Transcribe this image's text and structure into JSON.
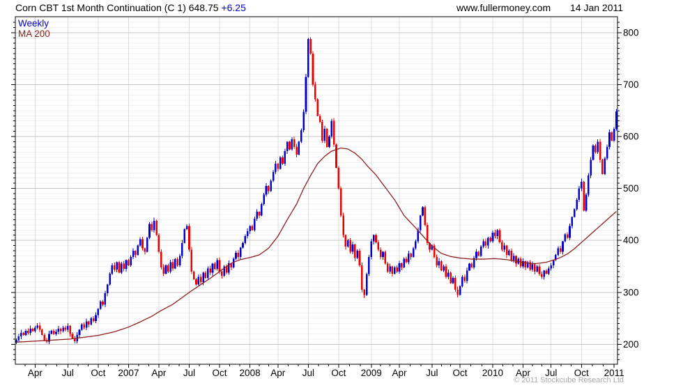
{
  "header": {
    "title": "Corn CBT 1st Month Continuation (C 1) 648.75",
    "change": "+6.25",
    "website": "www.fullermoney.com",
    "date": "14 Jan 2011"
  },
  "legend": {
    "series1": "Weekly",
    "series2": "MA 200"
  },
  "footer": {
    "copyright": "© 2011 Stockcube Research Ltd"
  },
  "colors": {
    "up": "#0000D2",
    "down": "#EB0000",
    "ma": "#8F1D1D",
    "grid_minor": "#EFEFEF",
    "grid_major": "#C6C6C6",
    "grid_vert": "#DBDBDB",
    "axis": "#000000",
    "text": "#000000",
    "change_text": "#0000CC",
    "legend_weekly": "#0000CC",
    "legend_ma": "#8F1D1D",
    "copyright": "#A8A8A8"
  },
  "chart_data": {
    "type": "candlestick",
    "title": "Corn CBT 1st Month Continuation (C 1)",
    "last_close": 648.75,
    "change": 6.25,
    "timeframe": "Weekly",
    "y_axis": {
      "ticks": [
        200,
        300,
        400,
        500,
        600,
        700,
        800
      ],
      "minor_step": 10,
      "min": 162,
      "max": 829,
      "side": "right"
    },
    "x_axis": {
      "labels": [
        {
          "label": "Apr",
          "week": 8
        },
        {
          "label": "Jul",
          "week": 22
        },
        {
          "label": "Oct",
          "week": 35
        },
        {
          "label": "2007",
          "week": 48
        },
        {
          "label": "Apr",
          "week": 61
        },
        {
          "label": "Jul",
          "week": 74
        },
        {
          "label": "Oct",
          "week": 87
        },
        {
          "label": "2008",
          "week": 100
        },
        {
          "label": "Apr",
          "week": 112
        },
        {
          "label": "Jul",
          "week": 125
        },
        {
          "label": "Oct",
          "week": 138
        },
        {
          "label": "2009",
          "week": 152
        },
        {
          "label": "Apr",
          "week": 164
        },
        {
          "label": "Jul",
          "week": 178
        },
        {
          "label": "Oct",
          "week": 190
        },
        {
          "label": "2010",
          "week": 204
        },
        {
          "label": "Apr",
          "week": 217
        },
        {
          "label": "Jul",
          "week": 229
        },
        {
          "label": "Oct",
          "week": 242
        },
        {
          "label": "2011",
          "week": 256
        }
      ]
    },
    "series": [
      {
        "name": "Weekly",
        "style": "candles",
        "up_color": "#0000D2",
        "down_color": "#EB0000",
        "weekly_closes": [
          208,
          215,
          222,
          218,
          226,
          222,
          230,
          225,
          232,
          236,
          228,
          218,
          208,
          205,
          220,
          226,
          220,
          224,
          230,
          225,
          232,
          228,
          235,
          220,
          212,
          206,
          218,
          228,
          238,
          232,
          244,
          238,
          250,
          245,
          256,
          268,
          282,
          276,
          298,
          315,
          336,
          352,
          344,
          358,
          338,
          355,
          345,
          362,
          352,
          368,
          380,
          372,
          390,
          402,
          385,
          378,
          405,
          432,
          420,
          438,
          410,
          378,
          348,
          336,
          352,
          340,
          358,
          346,
          364,
          352,
          370,
          395,
          422,
          428,
          382,
          340,
          325,
          315,
          330,
          320,
          338,
          328,
          346,
          338,
          355,
          345,
          362,
          340,
          332,
          350,
          338,
          356,
          348,
          365,
          376,
          368,
          386,
          395,
          408,
          418,
          428,
          420,
          442,
          455,
          448,
          470,
          488,
          505,
          495,
          515,
          532,
          548,
          538,
          560,
          548,
          572,
          590,
          575,
          595,
          580,
          565,
          590,
          612,
          648,
          715,
          788,
          760,
          700,
          672,
          640,
          628,
          592,
          615,
          580,
          600,
          630,
          585,
          540,
          500,
          448,
          410,
          388,
          400,
          378,
          392,
          366,
          380,
          352,
          305,
          295,
          335,
          368,
          398,
          410,
          396,
          382,
          368,
          378,
          355,
          340,
          350,
          336,
          348,
          340,
          356,
          348,
          365,
          358,
          375,
          368,
          385,
          398,
          420,
          448,
          464,
          430,
          395,
          382,
          390,
          368,
          352,
          360,
          342,
          350,
          330,
          338,
          318,
          328,
          305,
          295,
          312,
          330,
          322,
          342,
          355,
          348,
          366,
          378,
          370,
          388,
          398,
          390,
          405,
          398,
          415,
          408,
          420,
          396,
          382,
          390,
          372,
          380,
          362,
          370,
          355,
          365,
          350,
          360,
          348,
          358,
          344,
          354,
          340,
          350,
          335,
          330,
          342,
          336,
          346,
          352,
          362,
          372,
          385,
          378,
          398,
          412,
          405,
          428,
          445,
          460,
          478,
          500,
          513,
          457,
          488,
          525,
          555,
          583,
          570,
          590,
          555,
          528,
          558,
          580,
          608,
          592,
          615,
          648.75
        ]
      },
      {
        "name": "MA 200",
        "style": "line",
        "color": "#8F1D1D",
        "keypoints": [
          [
            0,
            204
          ],
          [
            12,
            207
          ],
          [
            23,
            210
          ],
          [
            35,
            217
          ],
          [
            42,
            224
          ],
          [
            48,
            233
          ],
          [
            53,
            243
          ],
          [
            58,
            254
          ],
          [
            62,
            265
          ],
          [
            67,
            277
          ],
          [
            71,
            290
          ],
          [
            75,
            303
          ],
          [
            79,
            315
          ],
          [
            83,
            327
          ],
          [
            87,
            340
          ],
          [
            90,
            350
          ],
          [
            93,
            358
          ],
          [
            96,
            363
          ],
          [
            100,
            367
          ],
          [
            104,
            372
          ],
          [
            108,
            385
          ],
          [
            112,
            408
          ],
          [
            116,
            440
          ],
          [
            120,
            470
          ],
          [
            123,
            500
          ],
          [
            126,
            525
          ],
          [
            129,
            548
          ],
          [
            132,
            562
          ],
          [
            135,
            572
          ],
          [
            139,
            578
          ],
          [
            142,
            576
          ],
          [
            145,
            568
          ],
          [
            148,
            556
          ],
          [
            150,
            545
          ],
          [
            154,
            526
          ],
          [
            158,
            502
          ],
          [
            162,
            478
          ],
          [
            166,
            448
          ],
          [
            170,
            429
          ],
          [
            174,
            409
          ],
          [
            178,
            389
          ],
          [
            182,
            375
          ],
          [
            186,
            369
          ],
          [
            190,
            366
          ],
          [
            195,
            364
          ],
          [
            200,
            364
          ],
          [
            205,
            365
          ],
          [
            210,
            363
          ],
          [
            214,
            360
          ],
          [
            218,
            357
          ],
          [
            221,
            355
          ],
          [
            224,
            356
          ],
          [
            227,
            358
          ],
          [
            230,
            362
          ],
          [
            233,
            367
          ],
          [
            236,
            374
          ],
          [
            239,
            384
          ],
          [
            242,
            396
          ],
          [
            245,
            408
          ],
          [
            248,
            420
          ],
          [
            251,
            432
          ],
          [
            254,
            444
          ],
          [
            257,
            456
          ]
        ]
      }
    ]
  }
}
